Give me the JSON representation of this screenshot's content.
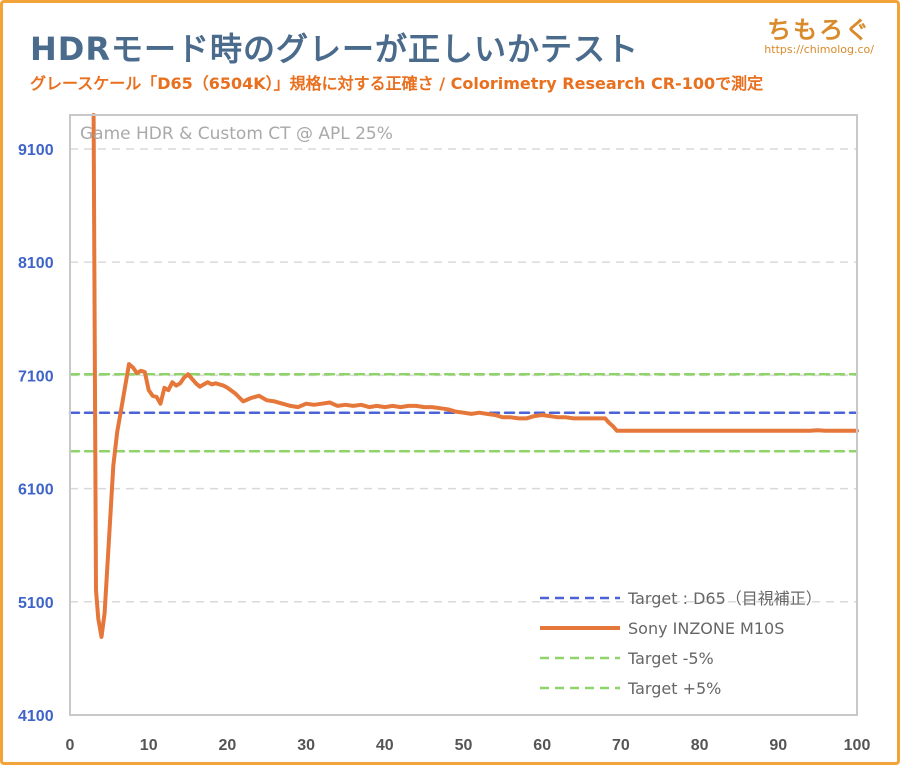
{
  "header": {
    "title": "HDRモード時のグレーが正しいかテスト",
    "subtitle": "グレースケール「D65（6504K）」規格に対する正確さ  / Colorimetry Research CR-100で測定"
  },
  "logo": {
    "mark": "ちもろぐ",
    "url": "https://chimolog.co/"
  },
  "colors": {
    "frame": "#f2a33a",
    "title": "#4a6b8c",
    "subtitle": "#e8701f",
    "measured": "#e5773a",
    "target": "#4b63d6",
    "tolerance": "#8fd46a",
    "ytick": "#3f64c9"
  },
  "chart_data": {
    "type": "line",
    "annotation": "Game HDR & Custom CT @ APL 25%",
    "xlim": [
      0,
      100
    ],
    "ylim": [
      4100,
      9400
    ],
    "xticks": [
      "0",
      "10",
      "20",
      "30",
      "40",
      "50",
      "60",
      "70",
      "80",
      "90",
      "100"
    ],
    "yticks": [
      "4100",
      "5100",
      "6100",
      "7100",
      "8100",
      "9100"
    ],
    "grid": true,
    "legend_position": "bottom-right",
    "series": [
      {
        "name": "Sony INZONE M10S",
        "style": "solid",
        "x": [
          3,
          3.3,
          3.6,
          4,
          4.4,
          5,
          5.5,
          6,
          6.5,
          7,
          7.5,
          8,
          8.5,
          9,
          9.5,
          10,
          10.5,
          11,
          11.5,
          12,
          12.5,
          13,
          13.5,
          14,
          14.5,
          15,
          15.5,
          16,
          16.5,
          17,
          17.5,
          18,
          18.5,
          19,
          19.5,
          20,
          21,
          22,
          23,
          24,
          25,
          26,
          27,
          28,
          29,
          30,
          31,
          32,
          33,
          34,
          35,
          36,
          37,
          38,
          39,
          40,
          41,
          42,
          43,
          44,
          45,
          46,
          47,
          48,
          49,
          50,
          51,
          52,
          53,
          54,
          55,
          56,
          57,
          58,
          59,
          60,
          61,
          62,
          63,
          64,
          65,
          66,
          67,
          68,
          68.5,
          69,
          69.5,
          70,
          72,
          75,
          80,
          85,
          90,
          94,
          95,
          96,
          97,
          98,
          99,
          100
        ],
        "y": [
          9400,
          5200,
          4950,
          4790,
          5000,
          5700,
          6300,
          6600,
          6800,
          7000,
          7200,
          7170,
          7120,
          7140,
          7130,
          6970,
          6920,
          6910,
          6850,
          6990,
          6970,
          7040,
          7010,
          7030,
          7080,
          7110,
          7070,
          7030,
          7000,
          7020,
          7040,
          7020,
          7030,
          7020,
          7010,
          6990,
          6940,
          6870,
          6900,
          6920,
          6880,
          6870,
          6850,
          6830,
          6820,
          6850,
          6840,
          6850,
          6860,
          6830,
          6840,
          6830,
          6840,
          6820,
          6830,
          6820,
          6830,
          6820,
          6830,
          6830,
          6820,
          6820,
          6810,
          6800,
          6780,
          6770,
          6760,
          6770,
          6760,
          6750,
          6730,
          6730,
          6720,
          6720,
          6740,
          6750,
          6740,
          6730,
          6730,
          6720,
          6720,
          6720,
          6720,
          6720,
          6680,
          6650,
          6610,
          6610,
          6610,
          6610,
          6610,
          6610,
          6610,
          6610,
          6615,
          6610,
          6610,
          6610,
          6610,
          6610
        ]
      },
      {
        "name": "Target : D65（目視補正）",
        "style": "dashed",
        "x": [
          0,
          100
        ],
        "y": [
          6770,
          6770
        ]
      },
      {
        "name": "Target -5%",
        "style": "dashed",
        "x": [
          0,
          100
        ],
        "y": [
          6430,
          6430
        ]
      },
      {
        "name": "Target +5%",
        "style": "dashed",
        "x": [
          0,
          100
        ],
        "y": [
          7110,
          7110
        ]
      }
    ]
  }
}
